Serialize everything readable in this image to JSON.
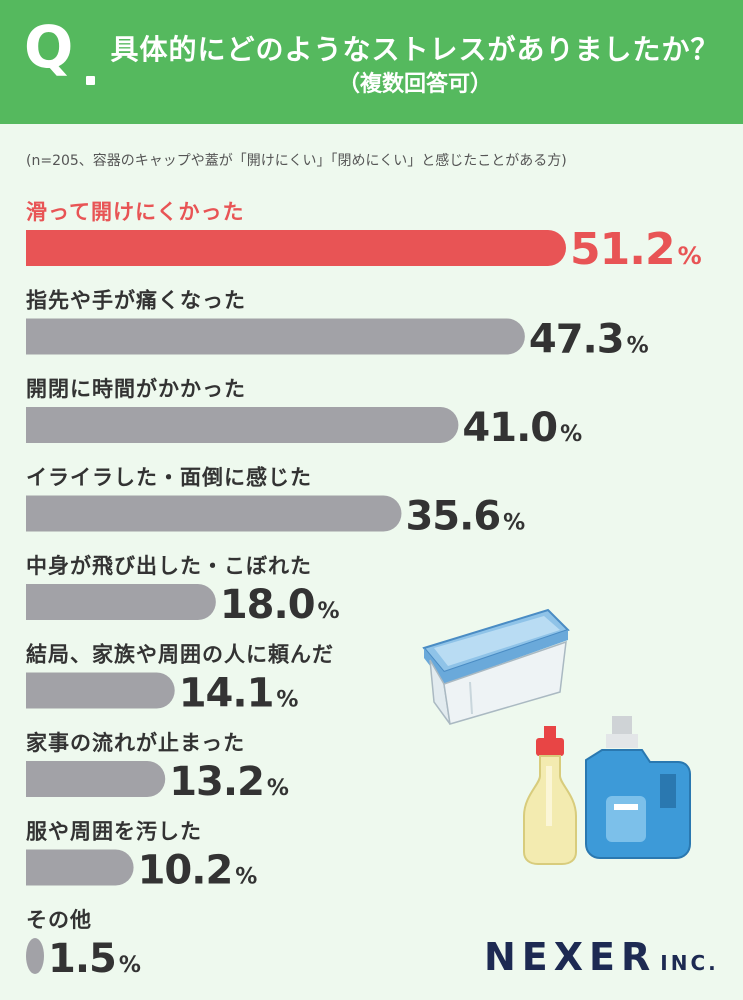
{
  "header": {
    "q_label": "Q",
    "title": "具体的にどのようなストレスがありましたか？",
    "subtitle": "（複数回答可）"
  },
  "note": "(n=205、容器のキャップや蓋が「開けにくい」「閉めにくい」と感じたことがある方)",
  "logo": {
    "main": "NEXER",
    "suffix": "INC."
  },
  "colors": {
    "header": "#55b95e",
    "background": "#eef9ee",
    "highlight": "#e85455",
    "bar": "#a2a2a7",
    "text": "#333333"
  },
  "chart_data": {
    "type": "bar",
    "orientation": "horizontal",
    "unit": "%",
    "categories": [
      "滑って開けにくかった",
      "指先や手が痛くなった",
      "開閉に時間がかかった",
      "イライラした・面倒に感じた",
      "中身が飛び出した・こぼれた",
      "結局、家族や周囲の人に頼んだ",
      "家事の流れが止まった",
      "服や周囲を汚した",
      "その他"
    ],
    "values": [
      51.2,
      47.3,
      41.0,
      35.6,
      18.0,
      14.1,
      13.2,
      10.2,
      1.5
    ],
    "labels": [
      "51.2",
      "47.3",
      "41.0",
      "35.6",
      "18.0",
      "14.1",
      "13.2",
      "10.2",
      "1.5"
    ],
    "highlight_index": 0
  }
}
